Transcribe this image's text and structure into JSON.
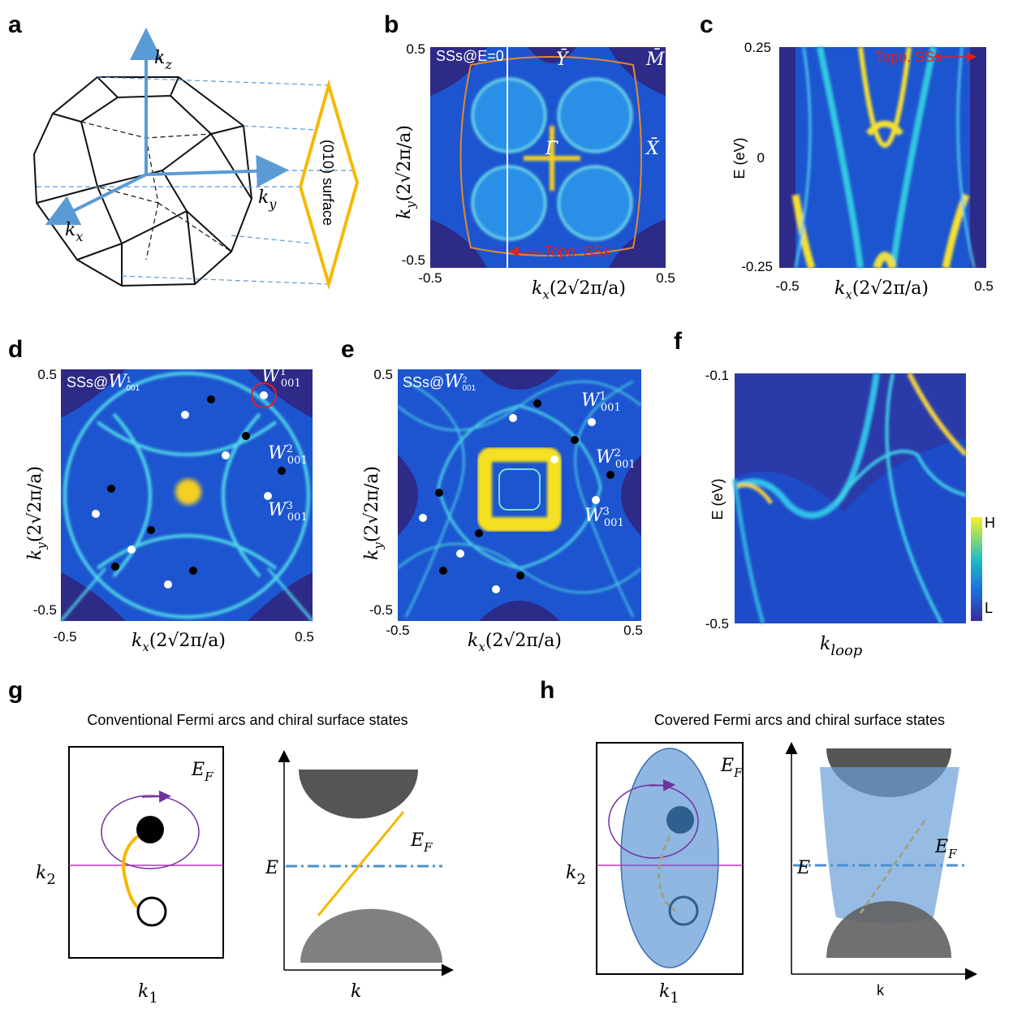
{
  "figure": {
    "a": {
      "label": "a",
      "kz": [
        "k",
        "z"
      ],
      "ky": [
        "k",
        "y"
      ],
      "kx": [
        "k",
        "x"
      ],
      "surface": "(010) surface"
    },
    "b": {
      "label": "b",
      "note": "SSs@E=0",
      "y_ticks": [
        "0.5",
        "-0.5"
      ],
      "x_ticks": [
        "-0.5",
        "0.5"
      ],
      "x_label": [
        "k",
        "x",
        "(2√2π/a)"
      ],
      "y_label": [
        "k",
        "y",
        "(2√2π/a)"
      ],
      "points": [
        "Ȳ",
        "M̄",
        "X̄",
        "Γ̄"
      ],
      "arrow_label": "Topo. SSs"
    },
    "c": {
      "label": "c",
      "y_ticks": [
        "0.25",
        "0",
        "-0.25"
      ],
      "x_ticks": [
        "-0.5",
        "0.5"
      ],
      "y_label": "E (eV)",
      "x_label": [
        "k",
        "x",
        "(2√2π/a)"
      ],
      "arrow_label": "Topo. SSs"
    },
    "d": {
      "label": "d",
      "note": {
        "prefix": "SSs@",
        "base": "W",
        "sup": "1",
        "sub": "001"
      },
      "y_ticks": [
        "0.5",
        "-0.5"
      ],
      "x_ticks": [
        "-0.5",
        "0.5"
      ],
      "x_label": [
        "k",
        "x",
        "(2√2π/a)"
      ],
      "y_label": [
        "k",
        "y",
        "(2√2π/a)"
      ],
      "points": [
        {
          "base": "W",
          "sup": "1",
          "sub": "001"
        },
        {
          "base": "W",
          "sup": "2",
          "sub": "001"
        },
        {
          "base": "W",
          "sup": "3",
          "sub": "001"
        }
      ]
    },
    "e": {
      "label": "e",
      "note": {
        "prefix": "SSs@",
        "base": "W",
        "sup": "2",
        "sub": "001"
      },
      "y_ticks": [
        "0.5",
        "-0.5"
      ],
      "x_ticks": [
        "-0.5",
        "0.5"
      ],
      "x_label": [
        "k",
        "x",
        "(2√2π/a)"
      ],
      "y_label": [
        "k",
        "y",
        "(2√2π/a)"
      ],
      "points": [
        {
          "base": "W",
          "sup": "1",
          "sub": "001"
        },
        {
          "base": "W",
          "sup": "2",
          "sub": "001"
        },
        {
          "base": "W",
          "sup": "3",
          "sub": "001"
        }
      ]
    },
    "f": {
      "label": "f",
      "y_ticks": [
        "-0.1",
        "-0.5"
      ],
      "y_label": "E (eV)",
      "x_label": [
        "k",
        "loop"
      ],
      "colorbar": [
        "H",
        "L"
      ]
    },
    "g": {
      "label": "g",
      "title": "Conventional Fermi arcs and chiral surface states",
      "k2": [
        "k",
        "2"
      ],
      "k1": [
        "k",
        "1"
      ],
      "ef_left": [
        "E",
        "F"
      ],
      "e": "E",
      "ef_right": [
        "E",
        "F"
      ],
      "k": "k"
    },
    "h": {
      "label": "h",
      "title": "Covered Fermi arcs and chiral surface states",
      "k2": [
        "k",
        "2"
      ],
      "k1": [
        "k",
        "1"
      ],
      "ef_left": [
        "E",
        "F"
      ],
      "e": "E",
      "ef_right": [
        "E",
        "F"
      ],
      "k": "k"
    }
  }
}
